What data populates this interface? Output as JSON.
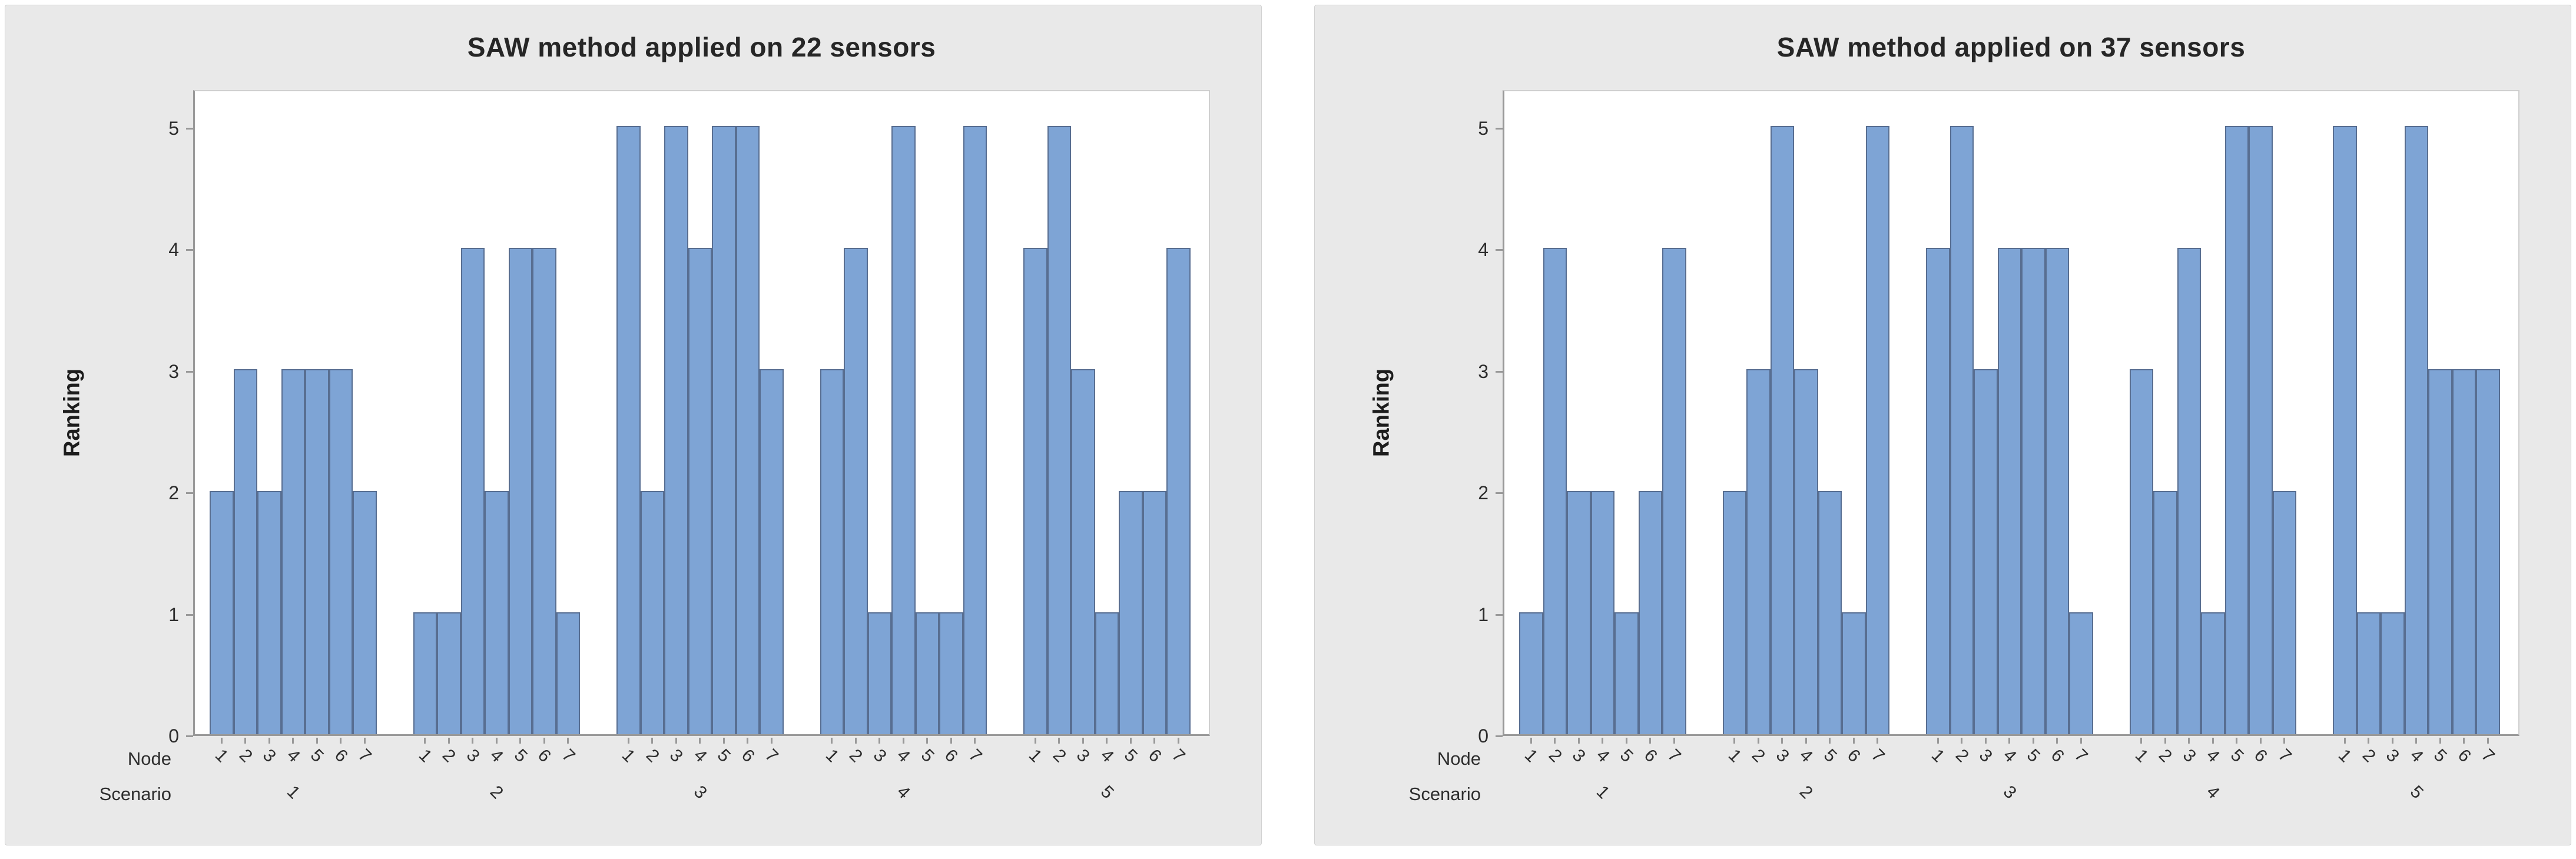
{
  "colors": {
    "bar_fill": "#7ea4d5",
    "bar_border": "#586e91",
    "panel_bg": "#e9e9e9",
    "panel_border": "#d2d2d2",
    "plot_bg": "#ffffff",
    "plot_border": "#cfcfcf",
    "axis_line": "#999999",
    "text": "#2d2d2d"
  },
  "chart_data": [
    {
      "type": "bar",
      "title": "SAW method applied on 22 sensors",
      "ylabel": "Ranking",
      "xlabel_rows": {
        "node": "Node",
        "scenario": "Scenario"
      },
      "ylim": [
        0,
        5
      ],
      "yticks": [
        "0",
        "1",
        "2",
        "3",
        "4",
        "5"
      ],
      "node_ticks": [
        "1",
        "2",
        "3",
        "4",
        "5",
        "6",
        "7"
      ],
      "grid": false,
      "legend": "none",
      "series": [
        {
          "scenario": "1",
          "values": [
            2,
            3,
            2,
            3,
            3,
            3,
            2
          ]
        },
        {
          "scenario": "2",
          "values": [
            1,
            1,
            4,
            2,
            4,
            4,
            1
          ]
        },
        {
          "scenario": "3",
          "values": [
            5,
            2,
            5,
            4,
            5,
            5,
            3
          ]
        },
        {
          "scenario": "4",
          "values": [
            3,
            4,
            1,
            5,
            1,
            1,
            5
          ]
        },
        {
          "scenario": "5",
          "values": [
            4,
            5,
            3,
            1,
            2,
            2,
            4
          ]
        }
      ]
    },
    {
      "type": "bar",
      "title": "SAW method applied on 37 sensors",
      "ylabel": "Ranking",
      "xlabel_rows": {
        "node": "Node",
        "scenario": "Scenario"
      },
      "ylim": [
        0,
        5
      ],
      "yticks": [
        "0",
        "1",
        "2",
        "3",
        "4",
        "5"
      ],
      "node_ticks": [
        "1",
        "2",
        "3",
        "4",
        "5",
        "6",
        "7"
      ],
      "grid": false,
      "legend": "none",
      "series": [
        {
          "scenario": "1",
          "values": [
            1,
            4,
            2,
            2,
            1,
            2,
            4
          ]
        },
        {
          "scenario": "2",
          "values": [
            2,
            3,
            5,
            3,
            2,
            1,
            5
          ]
        },
        {
          "scenario": "3",
          "values": [
            4,
            5,
            3,
            4,
            4,
            4,
            1
          ]
        },
        {
          "scenario": "4",
          "values": [
            3,
            2,
            4,
            1,
            5,
            5,
            2
          ]
        },
        {
          "scenario": "5",
          "values": [
            5,
            1,
            1,
            5,
            3,
            3,
            3
          ]
        }
      ]
    }
  ]
}
